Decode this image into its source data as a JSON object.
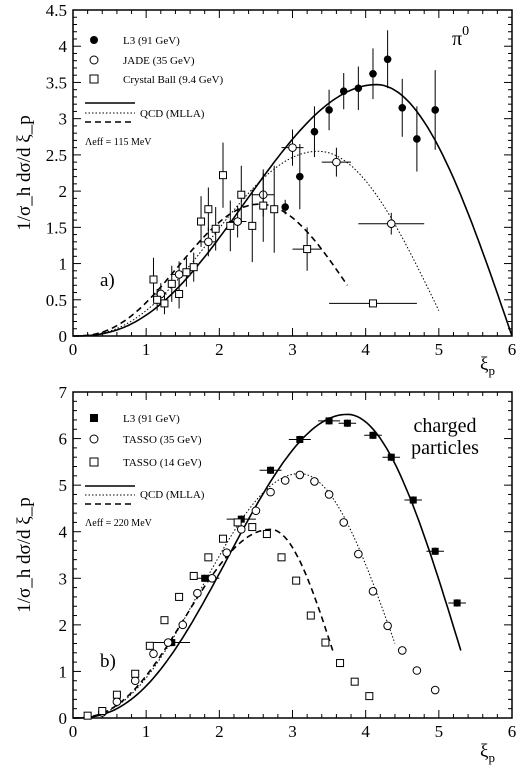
{
  "chart_data": [
    {
      "panel_label": "a)",
      "particle": "π",
      "particle_superscript": "0",
      "type": "scatter",
      "xlabel": "ξ",
      "xlabel_sub": "p",
      "ylabel": "1/σ_h dσ/d ξ_p",
      "xlim": [
        0,
        6
      ],
      "ylim": [
        0,
        4.5
      ],
      "xticks": [
        "0",
        "1",
        "2",
        "3",
        "4",
        "5",
        "6"
      ],
      "yticks": [
        "0",
        "0.5",
        "1",
        "1.5",
        "2",
        "2.5",
        "3",
        "3.5",
        "4",
        "4.5"
      ],
      "ytick_values": [
        0,
        0.5,
        1,
        1.5,
        2,
        2.5,
        3,
        3.5,
        4,
        4.5
      ],
      "legend_position": "top-left",
      "legend_entries": [
        "L3 (91 GeV)",
        "JADE (35 GeV)",
        "Crystal Ball (9.4 GeV)"
      ],
      "model_label": "QCD (MLLA)",
      "lambda_text": "Λeff = 115 MeV",
      "series": [
        {
          "name": "L3 (91 GeV)",
          "marker": "filled-circle",
          "points": [
            {
              "x": 2.9,
              "y": 1.78,
              "ey": 0.1
            },
            {
              "x": 3.1,
              "y": 2.2,
              "ey": 0.45
            },
            {
              "x": 3.3,
              "y": 2.82,
              "ey": 0.35
            },
            {
              "x": 3.5,
              "y": 3.12,
              "ey": 0.28
            },
            {
              "x": 3.7,
              "y": 3.38,
              "ey": 0.25
            },
            {
              "x": 3.9,
              "y": 3.42,
              "ey": 0.3
            },
            {
              "x": 4.1,
              "y": 3.62,
              "ey": 0.35
            },
            {
              "x": 4.3,
              "y": 3.82,
              "ey": 0.4
            },
            {
              "x": 4.5,
              "y": 3.15,
              "ey": 0.4
            },
            {
              "x": 4.7,
              "y": 2.72,
              "ey": 0.45
            },
            {
              "x": 4.95,
              "y": 3.12,
              "ey": 0.55
            }
          ]
        },
        {
          "name": "JADE (35 GeV)",
          "marker": "open-circle",
          "points": [
            {
              "x": 1.2,
              "y": 0.58,
              "ey": 0.15,
              "ex": 0.08
            },
            {
              "x": 1.45,
              "y": 0.85,
              "ey": 0.18,
              "ex": 0.1
            },
            {
              "x": 1.85,
              "y": 1.3,
              "ey": 0.2,
              "ex": 0.12
            },
            {
              "x": 2.25,
              "y": 1.58,
              "ey": 0.22,
              "ex": 0.12
            },
            {
              "x": 2.6,
              "y": 1.95,
              "ey": 0.3,
              "ex": 0.15
            },
            {
              "x": 3.0,
              "y": 2.6,
              "ey": 0.25,
              "ex": 0.15
            },
            {
              "x": 3.6,
              "y": 2.4,
              "ey": 0.2,
              "ex": 0.2
            },
            {
              "x": 4.35,
              "y": 1.55,
              "ey": 0.15,
              "ex": 0.45
            }
          ]
        },
        {
          "name": "Crystal Ball (9.4 GeV)",
          "marker": "open-square",
          "points": [
            {
              "x": 1.1,
              "y": 0.78,
              "ey": 0.3
            },
            {
              "x": 1.15,
              "y": 0.5,
              "ey": 0.15
            },
            {
              "x": 1.25,
              "y": 0.45,
              "ey": 0.15
            },
            {
              "x": 1.35,
              "y": 0.72,
              "ey": 0.25
            },
            {
              "x": 1.45,
              "y": 0.58,
              "ey": 0.2
            },
            {
              "x": 1.55,
              "y": 0.88,
              "ey": 0.2
            },
            {
              "x": 1.65,
              "y": 0.95,
              "ey": 0.2
            },
            {
              "x": 1.75,
              "y": 1.58,
              "ey": 0.35
            },
            {
              "x": 1.85,
              "y": 1.75,
              "ey": 0.3
            },
            {
              "x": 1.95,
              "y": 1.48,
              "ey": 0.3
            },
            {
              "x": 2.05,
              "y": 2.22,
              "ey": 0.45
            },
            {
              "x": 2.15,
              "y": 1.52,
              "ey": 0.35
            },
            {
              "x": 2.3,
              "y": 1.95,
              "ey": 0.4
            },
            {
              "x": 2.45,
              "y": 1.52,
              "ey": 0.5
            },
            {
              "x": 2.6,
              "y": 1.8,
              "ey": 0.5
            },
            {
              "x": 2.75,
              "y": 1.75,
              "ey": 0.6
            },
            {
              "x": 3.2,
              "y": 1.2,
              "ey": 0.3,
              "ex": 0.2
            },
            {
              "x": 4.1,
              "y": 0.45,
              "ey": 0.05,
              "ex": 0.6
            }
          ]
        }
      ],
      "curves": [
        {
          "style": "solid",
          "peak_x": 4.15,
          "peak_y": 3.47,
          "x_end": 6.0,
          "y_end": 0.0
        },
        {
          "style": "dotted",
          "peak_x": 3.35,
          "peak_y": 2.55,
          "x_end": 5.0,
          "y_end": 0.35
        },
        {
          "style": "dashed",
          "peak_x": 2.55,
          "peak_y": 1.82,
          "x_end": 3.75,
          "y_end": 0.7
        }
      ]
    },
    {
      "panel_label": "b)",
      "particle": "charged particles",
      "particle_lines": [
        "charged",
        "particles"
      ],
      "type": "scatter",
      "xlabel": "ξ",
      "xlabel_sub": "p",
      "ylabel": "1/σ_h dσ/d ξ_p",
      "xlim": [
        0,
        6
      ],
      "ylim": [
        0,
        7
      ],
      "xticks": [
        "0",
        "1",
        "2",
        "3",
        "4",
        "5",
        "6"
      ],
      "yticks": [
        "0",
        "1",
        "2",
        "3",
        "4",
        "5",
        "6",
        "7"
      ],
      "ytick_values": [
        0,
        1,
        2,
        3,
        4,
        5,
        6,
        7
      ],
      "legend_position": "top-left",
      "legend_entries": [
        "L3 (91 GeV)",
        "TASSO (35 GeV)",
        "TASSO (14 GeV)"
      ],
      "model_label": "QCD (MLLA)",
      "lambda_text": "Λeff = 220 MeV",
      "series": [
        {
          "name": "L3 (91 GeV)",
          "marker": "filled-square",
          "points": [
            {
              "x": 1.35,
              "y": 1.62,
              "ex": 0.25
            },
            {
              "x": 1.8,
              "y": 3.0,
              "ex": 0.2
            },
            {
              "x": 2.3,
              "y": 4.27,
              "ex": 0.2
            },
            {
              "x": 2.7,
              "y": 5.32,
              "ex": 0.15
            },
            {
              "x": 3.1,
              "y": 5.98,
              "ex": 0.15
            },
            {
              "x": 3.5,
              "y": 6.38,
              "ex": 0.15
            },
            {
              "x": 3.75,
              "y": 6.33,
              "ex": 0.12
            },
            {
              "x": 4.1,
              "y": 6.07,
              "ex": 0.12
            },
            {
              "x": 4.35,
              "y": 5.6,
              "ex": 0.12
            },
            {
              "x": 4.65,
              "y": 4.68,
              "ex": 0.12
            },
            {
              "x": 4.95,
              "y": 3.58,
              "ex": 0.12
            },
            {
              "x": 5.25,
              "y": 2.47,
              "ex": 0.12
            }
          ]
        },
        {
          "name": "TASSO (35 GeV)",
          "marker": "open-circle",
          "points": [
            {
              "x": 0.4,
              "y": 0.12
            },
            {
              "x": 0.6,
              "y": 0.35
            },
            {
              "x": 0.85,
              "y": 0.8
            },
            {
              "x": 1.1,
              "y": 1.38
            },
            {
              "x": 1.3,
              "y": 1.62
            },
            {
              "x": 1.5,
              "y": 2.0
            },
            {
              "x": 1.7,
              "y": 2.68
            },
            {
              "x": 1.9,
              "y": 3.0
            },
            {
              "x": 2.1,
              "y": 3.55
            },
            {
              "x": 2.3,
              "y": 4.05
            },
            {
              "x": 2.5,
              "y": 4.45
            },
            {
              "x": 2.7,
              "y": 4.85
            },
            {
              "x": 2.9,
              "y": 5.1
            },
            {
              "x": 3.1,
              "y": 5.22
            },
            {
              "x": 3.3,
              "y": 5.08
            },
            {
              "x": 3.5,
              "y": 4.8
            },
            {
              "x": 3.7,
              "y": 4.2
            },
            {
              "x": 3.9,
              "y": 3.52
            },
            {
              "x": 4.1,
              "y": 2.72
            },
            {
              "x": 4.3,
              "y": 1.98
            },
            {
              "x": 4.5,
              "y": 1.45
            },
            {
              "x": 4.7,
              "y": 1.02
            },
            {
              "x": 4.95,
              "y": 0.6
            }
          ]
        },
        {
          "name": "TASSO (14 GeV)",
          "marker": "open-square",
          "points": [
            {
              "x": 0.2,
              "y": 0.05
            },
            {
              "x": 0.4,
              "y": 0.15
            },
            {
              "x": 0.6,
              "y": 0.5
            },
            {
              "x": 0.85,
              "y": 0.95
            },
            {
              "x": 1.05,
              "y": 1.55
            },
            {
              "x": 1.25,
              "y": 2.1
            },
            {
              "x": 1.45,
              "y": 2.6
            },
            {
              "x": 1.65,
              "y": 3.05
            },
            {
              "x": 1.85,
              "y": 3.45
            },
            {
              "x": 2.05,
              "y": 3.85
            },
            {
              "x": 2.25,
              "y": 4.2
            },
            {
              "x": 2.45,
              "y": 4.1
            },
            {
              "x": 2.65,
              "y": 3.95
            },
            {
              "x": 2.85,
              "y": 3.45
            },
            {
              "x": 3.05,
              "y": 2.95
            },
            {
              "x": 3.25,
              "y": 2.2
            },
            {
              "x": 3.45,
              "y": 1.62
            },
            {
              "x": 3.65,
              "y": 1.18
            },
            {
              "x": 3.85,
              "y": 0.78
            },
            {
              "x": 4.05,
              "y": 0.47
            }
          ]
        }
      ],
      "curves": [
        {
          "style": "solid",
          "peak_x": 3.75,
          "peak_y": 6.52,
          "x_end": 5.3,
          "y_end": 1.45
        },
        {
          "style": "dotted",
          "peak_x": 3.1,
          "peak_y": 5.25,
          "x_end": 4.4,
          "y_end": 1.6
        },
        {
          "style": "dashed",
          "peak_x": 2.7,
          "peak_y": 4.05,
          "x_end": 3.55,
          "y_end": 1.45
        }
      ]
    }
  ]
}
